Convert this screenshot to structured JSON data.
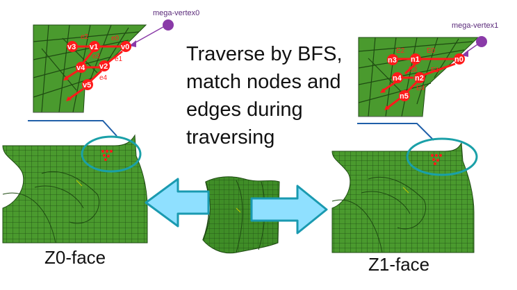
{
  "text": {
    "lines": [
      "Traverse by BFS,",
      "match nodes and",
      "edges during",
      "traversing"
    ],
    "left_face_label": "Z0-face",
    "right_face_label": "Z1-face"
  },
  "left_detail": {
    "mega_vertex": "mega-vertex0",
    "nodes": [
      "v0",
      "v1",
      "v2",
      "v3",
      "v4",
      "v5"
    ],
    "edges": [
      "e0",
      "e1",
      "e2",
      "e3",
      "e4"
    ]
  },
  "right_detail": {
    "mega_vertex": "mega-vertex1",
    "nodes": [
      "n0",
      "n1",
      "n2",
      "n3",
      "n4",
      "n5"
    ],
    "edges": [
      "E0",
      "E1",
      "E2",
      "E3",
      "E4"
    ]
  },
  "colors": {
    "mesh_green": "#4a9a2e",
    "mesh_line": "#1e4a12",
    "node_red": "#ff1a1a",
    "mega_purple": "#8a3aa8",
    "highlight_teal": "#1aa0a8",
    "callout_blue": "#1f5fa8",
    "arrow_fill": "#8fe0ff",
    "arrow_stroke": "#1a9ab0"
  }
}
